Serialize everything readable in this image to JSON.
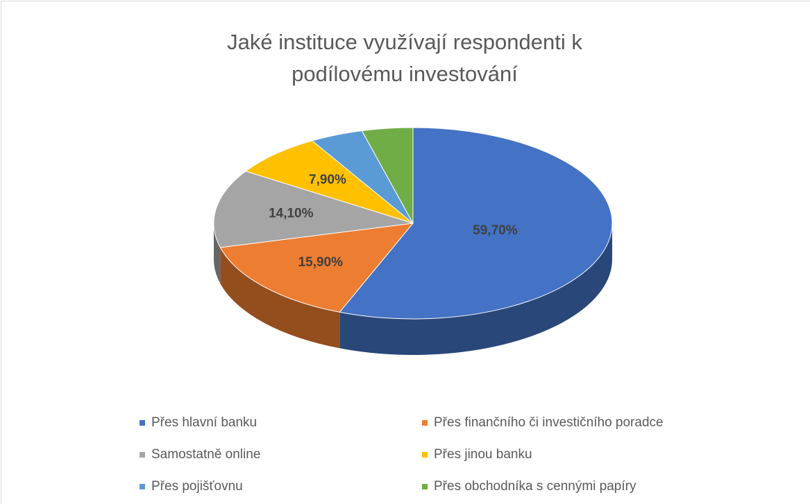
{
  "chart_data": {
    "type": "pie3d",
    "title": "Jaké instituce využívají respondenti k podílovému investování",
    "categories": [
      "Přes hlavní banku",
      "Přes finančního či investičního poradce",
      "Samostatně online",
      "Přes jinou banku",
      "Přes pojišťovnu",
      "Přes obchodníka s cennými papíry"
    ],
    "values": [
      59.7,
      15.9,
      14.1,
      7.9,
      4.6,
      4.4
    ],
    "value_labels": [
      "59,70%",
      "15,90%",
      "14,10%",
      "7,90%",
      null,
      null
    ],
    "colors": [
      "#4472c4",
      "#ed7d31",
      "#a5a5a5",
      "#ffc000",
      "#5b9bd5",
      "#70ad47"
    ],
    "legend": "bottom"
  }
}
